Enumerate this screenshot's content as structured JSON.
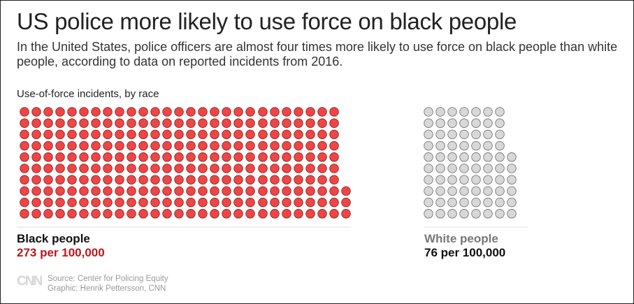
{
  "title": "US police more likely to use force on black people",
  "subtitle": "In the United States, police officers are almost four times more likely to use force on black people than white people, according to data on reported incidents from 2016.",
  "chart_data": {
    "type": "waffle",
    "label": "Use-of-force incidents, by race",
    "unit": "1 dot = 1 incident per 100,000",
    "series": [
      {
        "name": "Black people",
        "value": 273,
        "value_label": "273 per 100,000",
        "color": "#f04545",
        "stroke": "#8a2a2a",
        "label_color": "#c0151b",
        "name_color": "#111111"
      },
      {
        "name": "White people",
        "value": 76,
        "value_label": "76 per 100,000",
        "color": "#d8d8d8",
        "stroke": "#777777",
        "label_color": "#111111",
        "name_color": "#777777"
      }
    ]
  },
  "footer": {
    "logo": "CNN",
    "source": "Source: Center for Policing Equity",
    "credit": "Graphic: Henrik Pettersson, CNN"
  }
}
